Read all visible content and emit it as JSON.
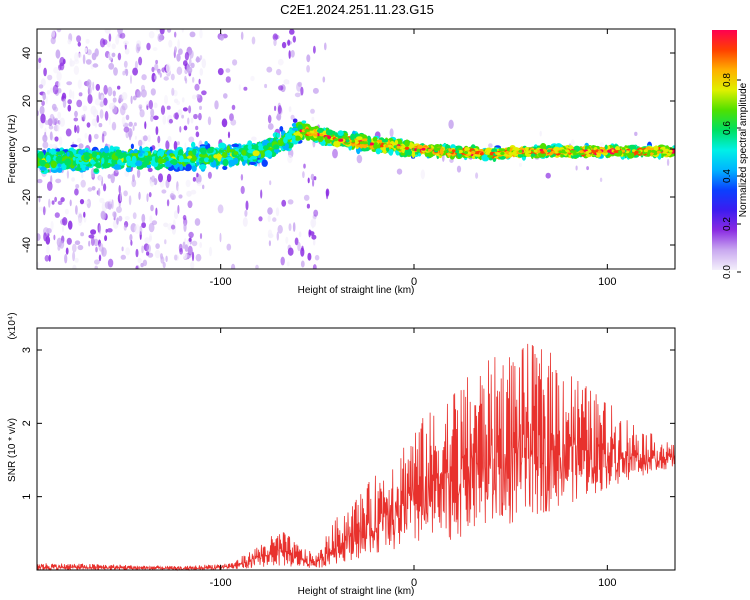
{
  "title": "C2E1.2024.251.11.23.G15",
  "chart_data": [
    {
      "type": "heatmap",
      "xlabel": "Height of straight line (km)",
      "ylabel": "Frequency (Hz)",
      "xlim": [
        -195,
        135
      ],
      "ylim": [
        -50,
        50
      ],
      "xticks": [
        -100,
        0,
        100
      ],
      "xtick_labels": [
        "-100",
        "0",
        "100"
      ],
      "yticks": [
        -40,
        -20,
        0,
        20,
        40
      ],
      "ytick_labels": [
        "-40",
        "-20",
        "0",
        "20",
        "40"
      ],
      "center_line": {
        "x": [
          -195,
          -150,
          -120,
          -100,
          -80,
          -65,
          -58,
          -50,
          -40,
          -30,
          -20,
          -10,
          0,
          20,
          40,
          60,
          80,
          100,
          120,
          135
        ],
        "y": [
          -5,
          -4,
          -4,
          -3,
          -1,
          4,
          8,
          6,
          4,
          3,
          2,
          1,
          0,
          -1,
          -2,
          -1,
          -1,
          -1,
          -1,
          -1
        ]
      },
      "colorbar": {
        "label": "Normalized spectral amplitude",
        "range": [
          0,
          1
        ],
        "ticks": [
          0.0,
          0.2,
          0.4,
          0.6,
          0.8
        ],
        "tick_labels": [
          "0.0",
          "0.2",
          "0.4",
          "0.6",
          "0.8"
        ],
        "colors": [
          "#f4f0fb",
          "#c9a8f0",
          "#8a2be2",
          "#3c1cf0",
          "#0a40ff",
          "#00b4ff",
          "#00f0e6",
          "#00e060",
          "#50e000",
          "#e0f000",
          "#ffb000",
          "#ff4000",
          "#ff0050"
        ]
      }
    },
    {
      "type": "line",
      "xlabel": "Height of straight line (km)",
      "ylabel": "SNR (10 * v/v)",
      "scale_label": "(x10⁴)",
      "xlim": [
        -195,
        135
      ],
      "ylim": [
        0,
        3.3
      ],
      "xticks": [
        -100,
        0,
        100
      ],
      "xtick_labels": [
        "-100",
        "0",
        "100"
      ],
      "yticks": [
        1,
        2,
        3
      ],
      "ytick_labels": [
        "1",
        "2",
        "3"
      ],
      "color": "#e8312d",
      "envelope": {
        "x": [
          -195,
          -160,
          -120,
          -95,
          -85,
          -75,
          -68,
          -60,
          -50,
          -45,
          -38,
          -30,
          -20,
          -10,
          0,
          10,
          20,
          30,
          40,
          50,
          60,
          70,
          80,
          90,
          100,
          110,
          120,
          135
        ],
        "upper": [
          0.1,
          0.08,
          0.05,
          0.1,
          0.25,
          0.45,
          0.55,
          0.35,
          0.2,
          0.5,
          0.8,
          1.0,
          1.3,
          1.6,
          2.0,
          2.2,
          2.5,
          2.7,
          2.9,
          3.0,
          3.1,
          3.0,
          2.8,
          2.5,
          2.3,
          2.1,
          1.9,
          1.7
        ],
        "lower": [
          0.0,
          0.0,
          0.0,
          0.0,
          0.02,
          0.05,
          0.05,
          0.03,
          0.02,
          0.05,
          0.1,
          0.15,
          0.2,
          0.25,
          0.3,
          0.35,
          0.4,
          0.5,
          0.55,
          0.6,
          0.7,
          0.8,
          0.9,
          1.0,
          1.1,
          1.2,
          1.3,
          1.4
        ]
      }
    }
  ]
}
